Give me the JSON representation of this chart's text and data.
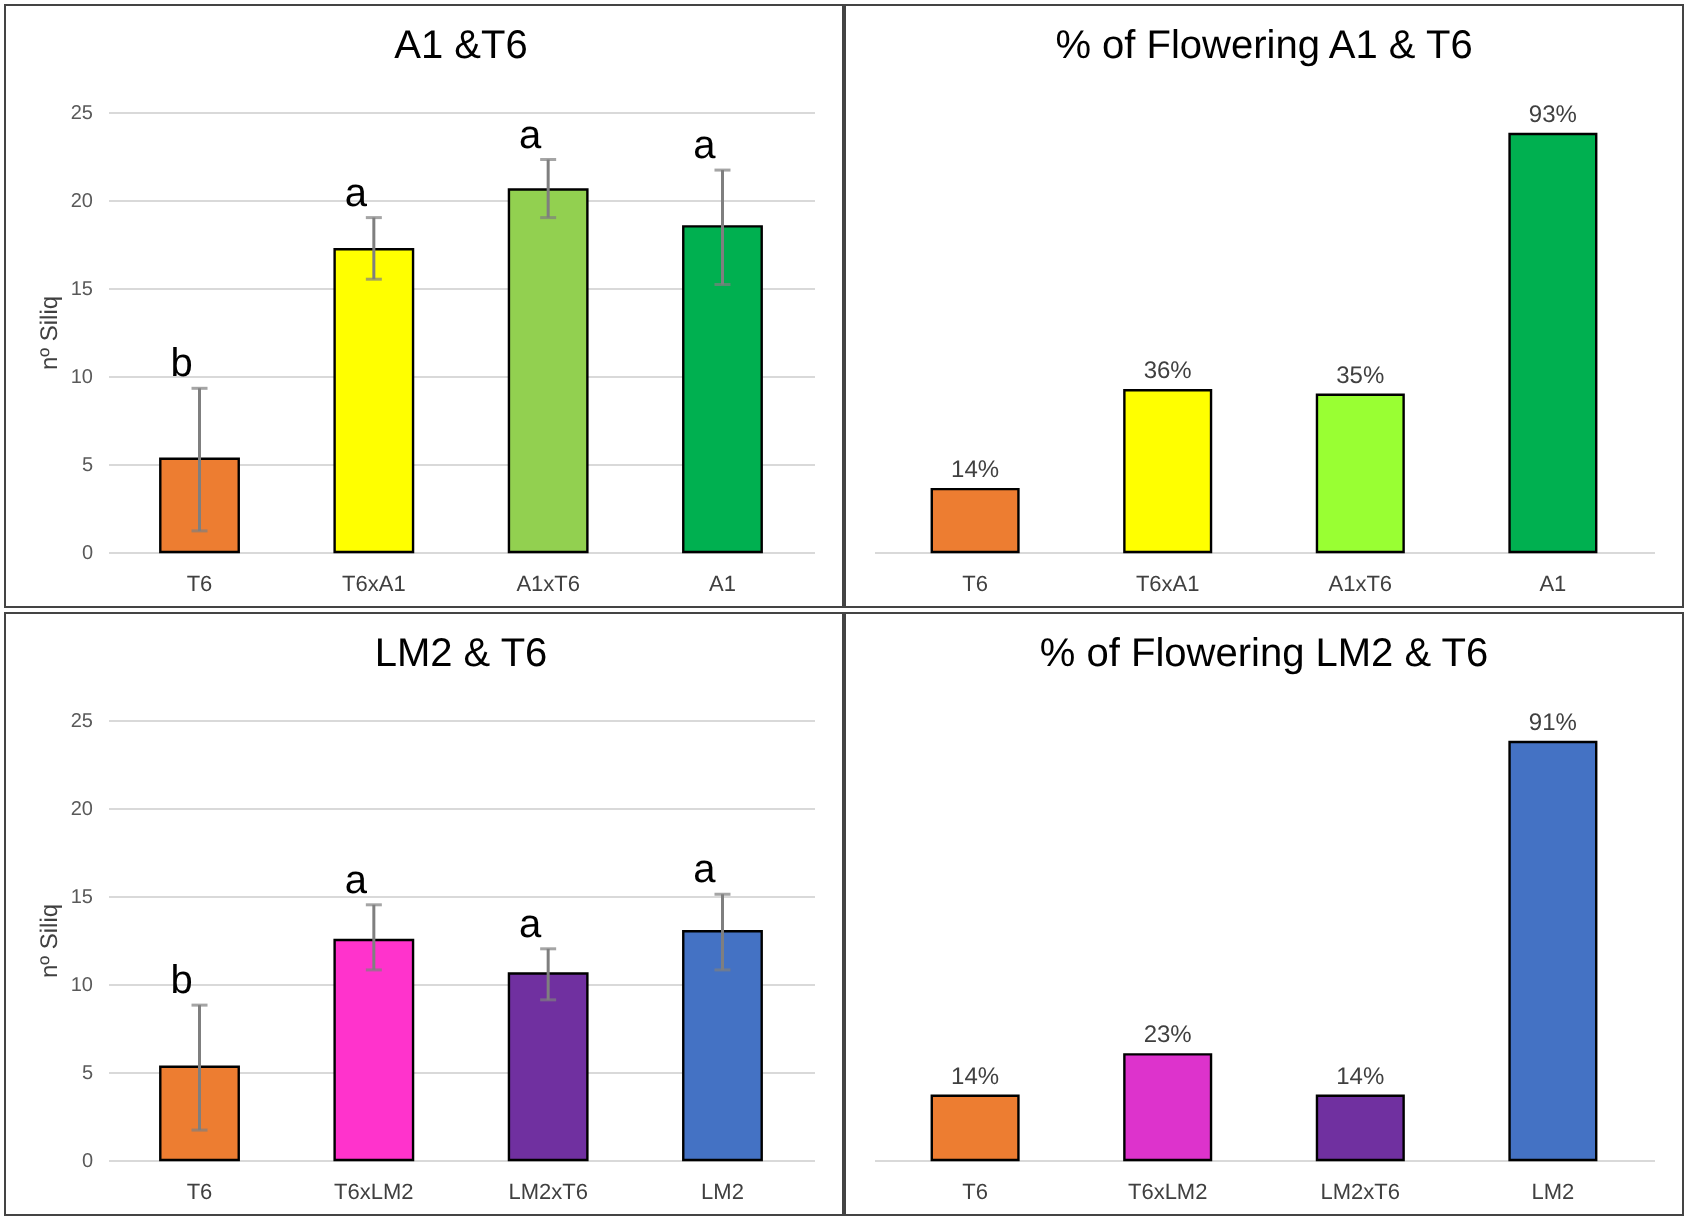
{
  "chart_data": [
    {
      "type": "bar",
      "title": "A1 &T6",
      "ylabel": "nº Siliq",
      "categories": [
        "T6",
        "T6xA1",
        "A1xT6",
        "A1"
      ],
      "values": [
        5.3,
        17.2,
        20.6,
        18.5
      ],
      "colors": [
        "#ed7d31",
        "#ffff00",
        "#92d050",
        "#00b050"
      ],
      "errors": [
        [
          1.2,
          9.3
        ],
        [
          15.5,
          19.0
        ],
        [
          19.0,
          22.3
        ],
        [
          15.2,
          21.7
        ]
      ],
      "ylim": [
        0,
        25
      ],
      "yticks": [
        0,
        5,
        10,
        15,
        20,
        25
      ],
      "grid": "y",
      "annotations": [
        {
          "text": "b",
          "x": "T6",
          "y": 9.3
        },
        {
          "text": "a",
          "x": "T6xA1",
          "y": 19.0
        },
        {
          "text": "a",
          "x": "A1xT6",
          "y": 22.3
        },
        {
          "text": "a",
          "x": "A1",
          "y": 21.7
        }
      ]
    },
    {
      "type": "bar",
      "title": "% of Flowering A1 & T6",
      "categories": [
        "T6",
        "T6xA1",
        "A1xT6",
        "A1"
      ],
      "values": [
        14,
        36,
        35,
        93
      ],
      "colors": [
        "#ed7d31",
        "#ffff00",
        "#99ff33",
        "#00b050"
      ],
      "value_labels": [
        "14%",
        "36%",
        "35%",
        "93%"
      ]
    },
    {
      "type": "bar",
      "title": "LM2 & T6",
      "ylabel": "nº Siliq",
      "categories": [
        "T6",
        "T6xLM2",
        "LM2xT6",
        "LM2"
      ],
      "values": [
        5.3,
        12.5,
        10.6,
        13.0
      ],
      "colors": [
        "#ed7d31",
        "#ff33cc",
        "#7030a0",
        "#4472c4"
      ],
      "errors": [
        [
          1.7,
          8.8
        ],
        [
          10.8,
          14.5
        ],
        [
          9.1,
          12.0
        ],
        [
          10.8,
          15.1
        ]
      ],
      "ylim": [
        0,
        25
      ],
      "yticks": [
        0,
        5,
        10,
        15,
        20,
        25
      ],
      "grid": "y",
      "annotations": [
        {
          "text": "b",
          "x": "T6",
          "y": 8.8
        },
        {
          "text": "a",
          "x": "T6xLM2",
          "y": 14.5
        },
        {
          "text": "a",
          "x": "LM2xT6",
          "y": 12.0
        },
        {
          "text": "a",
          "x": "LM2",
          "y": 15.1
        }
      ]
    },
    {
      "type": "bar",
      "title": "% of Flowering LM2 & T6",
      "categories": [
        "T6",
        "T6xLM2",
        "LM2xT6",
        "LM2"
      ],
      "values": [
        14,
        23,
        14,
        91
      ],
      "colors": [
        "#ed7d31",
        "#dd33cc",
        "#7030a0",
        "#4472c4"
      ],
      "value_labels": [
        "14%",
        "23%",
        "14%",
        "91%"
      ]
    }
  ]
}
